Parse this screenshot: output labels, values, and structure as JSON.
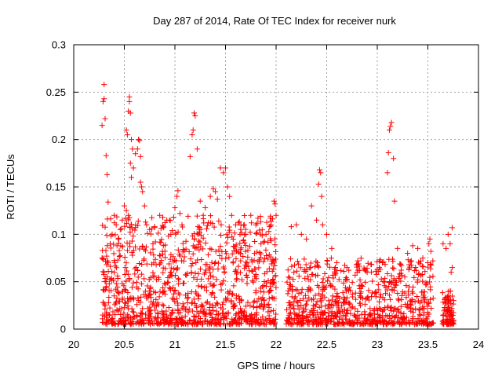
{
  "chart_data": {
    "type": "scatter",
    "title": "Day 287 of 2014, Rate Of TEC Index for receiver nurk",
    "xlabel": "GPS time / hours",
    "ylabel": "ROTI / TECUs",
    "xlim": [
      20,
      24
    ],
    "ylim": [
      0,
      0.3
    ],
    "x_ticks": [
      20,
      20.5,
      21,
      21.5,
      22,
      22.5,
      23,
      23.5,
      24
    ],
    "x_tick_labels": [
      "20",
      "20.5",
      "21",
      "21.5",
      "22",
      "22.5",
      "23",
      "23.5",
      "24"
    ],
    "y_ticks": [
      0,
      0.05,
      0.1,
      0.15,
      0.2,
      0.25,
      0.3
    ],
    "y_tick_labels": [
      "0",
      "0.05",
      "0.1",
      "0.15",
      "0.2",
      "0.25",
      "0.3"
    ],
    "grid": true,
    "marker": "plus",
    "series": [
      {
        "name": "ROTI",
        "color": "#ff0000",
        "points": [
          [
            20.28,
            0.215
          ],
          [
            20.29,
            0.24
          ],
          [
            20.3,
            0.243
          ],
          [
            20.3,
            0.258
          ],
          [
            20.31,
            0.222
          ],
          [
            20.32,
            0.183
          ],
          [
            20.33,
            0.163
          ],
          [
            20.34,
            0.134
          ],
          [
            20.28,
            0.075
          ],
          [
            20.3,
            0.06
          ],
          [
            20.31,
            0.05
          ],
          [
            20.32,
            0.045
          ],
          [
            20.33,
            0.055
          ],
          [
            20.34,
            0.07
          ],
          [
            20.36,
            0.09
          ],
          [
            20.38,
            0.1
          ],
          [
            20.4,
            0.12
          ],
          [
            20.42,
            0.11
          ],
          [
            20.44,
            0.095
          ],
          [
            20.46,
            0.105
          ],
          [
            20.48,
            0.115
          ],
          [
            20.5,
            0.13
          ],
          [
            20.52,
            0.125
          ],
          [
            20.54,
            0.12
          ],
          [
            20.52,
            0.21
          ],
          [
            20.53,
            0.205
          ],
          [
            20.54,
            0.23
          ],
          [
            20.55,
            0.245
          ],
          [
            20.55,
            0.24
          ],
          [
            20.56,
            0.228
          ],
          [
            20.57,
            0.2
          ],
          [
            20.58,
            0.19
          ],
          [
            20.56,
            0.175
          ],
          [
            20.57,
            0.16
          ],
          [
            20.59,
            0.17
          ],
          [
            20.61,
            0.185
          ],
          [
            20.63,
            0.19
          ],
          [
            20.64,
            0.2
          ],
          [
            20.65,
            0.199
          ],
          [
            20.66,
            0.182
          ],
          [
            20.66,
            0.155
          ],
          [
            20.67,
            0.15
          ],
          [
            20.68,
            0.145
          ],
          [
            20.7,
            0.13
          ],
          [
            20.72,
            0.11
          ],
          [
            20.75,
            0.105
          ],
          [
            20.8,
            0.108
          ],
          [
            20.85,
            0.12
          ],
          [
            20.88,
            0.118
          ],
          [
            20.92,
            0.115
          ],
          [
            20.96,
            0.1
          ],
          [
            21.0,
            0.128
          ],
          [
            21.02,
            0.14
          ],
          [
            21.03,
            0.146
          ],
          [
            21.05,
            0.122
          ],
          [
            21.07,
            0.11
          ],
          [
            21.15,
            0.182
          ],
          [
            21.17,
            0.205
          ],
          [
            21.18,
            0.21
          ],
          [
            21.19,
            0.228
          ],
          [
            21.2,
            0.225
          ],
          [
            21.22,
            0.19
          ],
          [
            21.25,
            0.135
          ],
          [
            21.28,
            0.12
          ],
          [
            21.3,
            0.128
          ],
          [
            21.35,
            0.14
          ],
          [
            21.38,
            0.148
          ],
          [
            21.4,
            0.145
          ],
          [
            21.42,
            0.137
          ],
          [
            21.45,
            0.17
          ],
          [
            21.48,
            0.165
          ],
          [
            21.5,
            0.17
          ],
          [
            21.52,
            0.15
          ],
          [
            21.54,
            0.14
          ],
          [
            21.56,
            0.12
          ],
          [
            21.6,
            0.11
          ],
          [
            21.65,
            0.105
          ],
          [
            21.7,
            0.1
          ],
          [
            21.75,
            0.12
          ],
          [
            21.8,
            0.11
          ],
          [
            21.85,
            0.09
          ],
          [
            21.9,
            0.1
          ],
          [
            21.95,
            0.11
          ],
          [
            21.98,
            0.135
          ],
          [
            21.99,
            0.132
          ],
          [
            22.0,
            0.12
          ],
          [
            22.15,
            0.108
          ],
          [
            22.2,
            0.11
          ],
          [
            22.25,
            0.1
          ],
          [
            22.3,
            0.095
          ],
          [
            22.35,
            0.13
          ],
          [
            22.4,
            0.115
          ],
          [
            22.42,
            0.153
          ],
          [
            22.43,
            0.168
          ],
          [
            22.44,
            0.165
          ],
          [
            22.45,
            0.14
          ],
          [
            22.46,
            0.11
          ],
          [
            22.5,
            0.1
          ],
          [
            22.55,
            0.085
          ],
          [
            22.6,
            0.07
          ],
          [
            22.7,
            0.065
          ],
          [
            22.8,
            0.06
          ],
          [
            22.9,
            0.06
          ],
          [
            23.0,
            0.063
          ],
          [
            23.05,
            0.07
          ],
          [
            23.1,
            0.165
          ],
          [
            23.11,
            0.186
          ],
          [
            23.12,
            0.21
          ],
          [
            23.13,
            0.214
          ],
          [
            23.14,
            0.218
          ],
          [
            23.16,
            0.18
          ],
          [
            23.17,
            0.135
          ],
          [
            23.2,
            0.085
          ],
          [
            23.3,
            0.08
          ],
          [
            23.35,
            0.088
          ],
          [
            23.4,
            0.085
          ],
          [
            23.45,
            0.075
          ],
          [
            23.5,
            0.07
          ],
          [
            23.51,
            0.09
          ],
          [
            23.52,
            0.095
          ],
          [
            23.53,
            0.082
          ],
          [
            23.65,
            0.09
          ],
          [
            23.68,
            0.085
          ],
          [
            23.7,
            0.1
          ],
          [
            23.72,
            0.09
          ],
          [
            23.74,
            0.107
          ],
          [
            23.73,
            0.06
          ],
          [
            23.74,
            0.065
          ],
          [
            23.72,
            0.04
          ],
          [
            23.71,
            0.03
          ]
        ]
      }
    ],
    "dense_clusters": [
      {
        "x_range": [
          20.28,
          22.0
        ],
        "y_range": [
          0.005,
          0.12
        ],
        "count": 1100
      },
      {
        "x_range": [
          22.1,
          23.56
        ],
        "y_range": [
          0.005,
          0.075
        ],
        "count": 800
      },
      {
        "x_range": [
          23.64,
          23.76
        ],
        "y_range": [
          0.005,
          0.04
        ],
        "count": 90
      }
    ]
  }
}
